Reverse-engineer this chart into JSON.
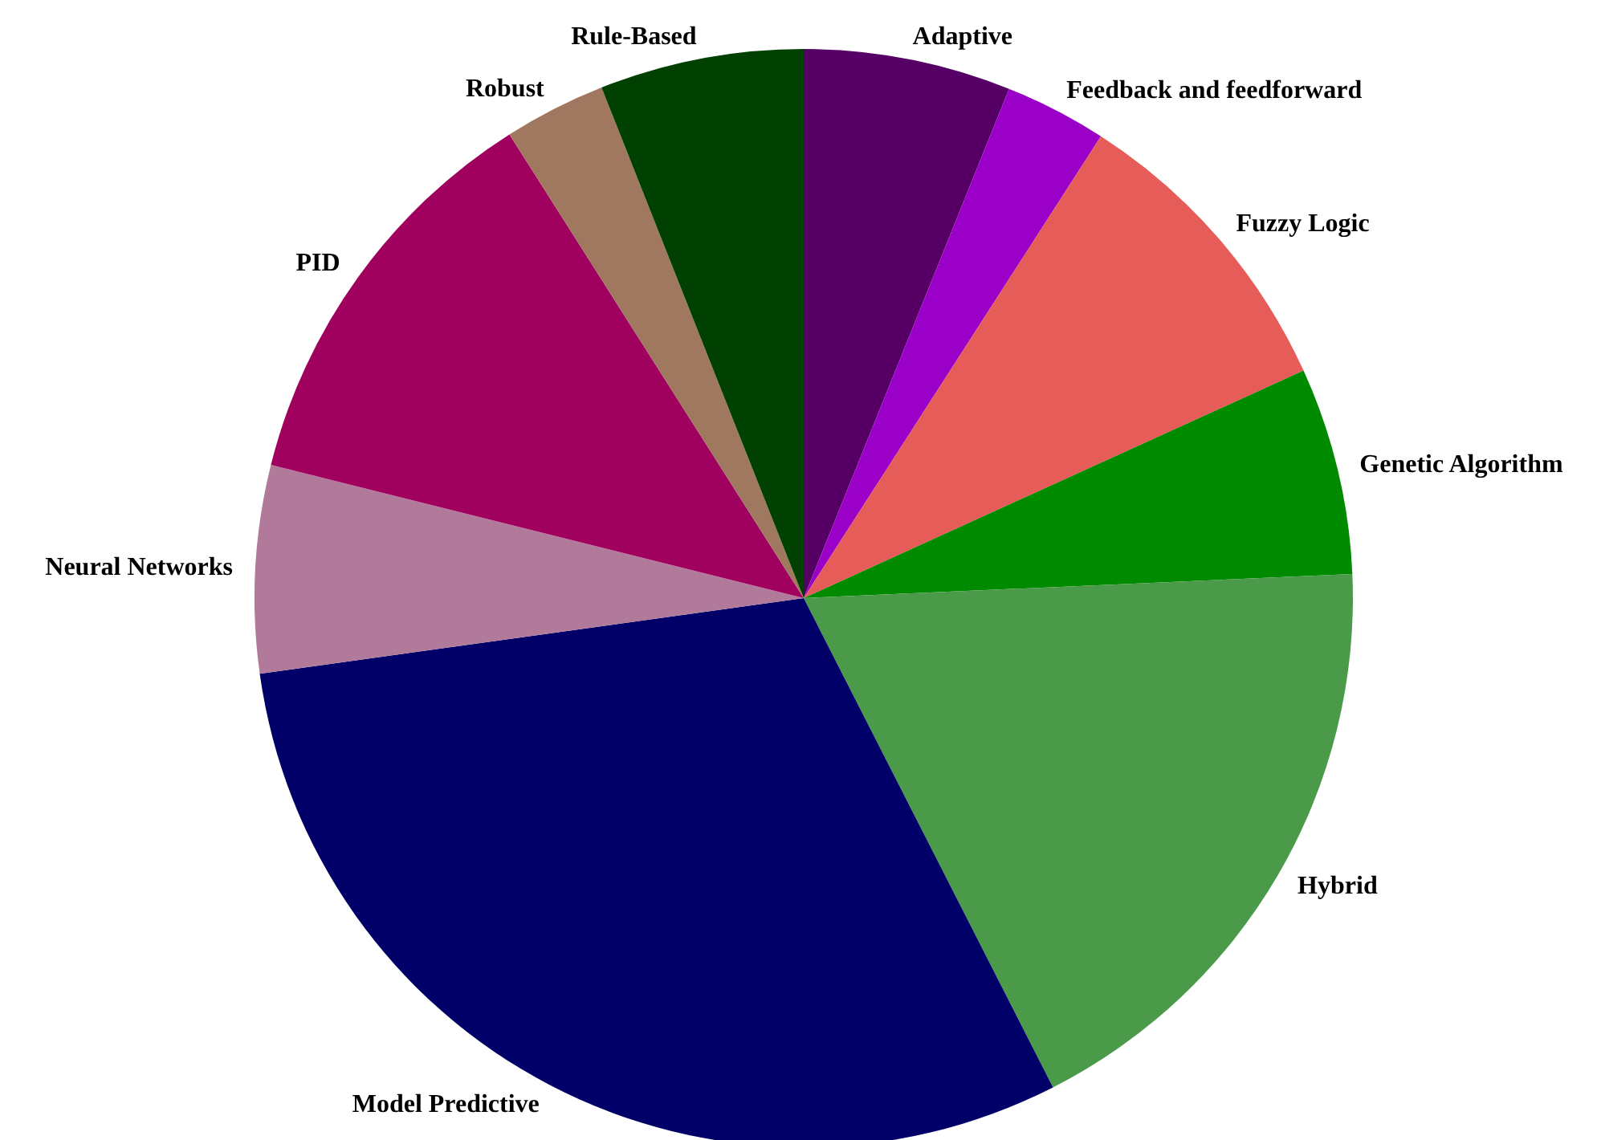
{
  "chart_data": {
    "type": "pie",
    "categories": [
      "Adaptive",
      "Feedback and feedforward",
      "Fuzzy Logic",
      "Genetic Algorithm",
      "Hybrid",
      "Model Predictive",
      "Neural Networks",
      "PID",
      "Robust",
      "Rule-Based"
    ],
    "values": [
      6.1,
      3.0,
      9.1,
      6.1,
      18.2,
      30.3,
      6.1,
      12.1,
      3.0,
      6.0
    ],
    "colors": [
      "#560066",
      "#9a00c8",
      "#e65c58",
      "#008a00",
      "#4a9a4a",
      "#000068",
      "#b27a9a",
      "#a0005e",
      "#a07860",
      "#004000"
    ]
  }
}
